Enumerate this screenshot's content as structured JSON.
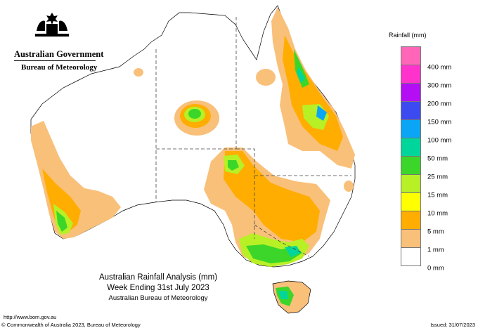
{
  "header": {
    "government": "Australian Government",
    "bureau": "Bureau of Meteorology"
  },
  "legend": {
    "title": "Rainfall (mm)",
    "items": [
      {
        "label": "",
        "color": "#ff66b8"
      },
      {
        "label": "400 mm",
        "color": "#ff33cc"
      },
      {
        "label": "300 mm",
        "color": "#b40ef5"
      },
      {
        "label": "200 mm",
        "color": "#3b4bf0"
      },
      {
        "label": "150 mm",
        "color": "#0ba5f5"
      },
      {
        "label": "100 mm",
        "color": "#00d69b"
      },
      {
        "label": "50 mm",
        "color": "#3bd629"
      },
      {
        "label": "25 mm",
        "color": "#b8f026"
      },
      {
        "label": "15 mm",
        "color": "#ffff00"
      },
      {
        "label": "10 mm",
        "color": "#ffad00"
      },
      {
        "label": "5 mm",
        "color": "#f9c07a"
      },
      {
        "label": "1 mm",
        "color": "#ffffff"
      },
      {
        "label": "0 mm",
        "color": ""
      }
    ]
  },
  "caption": {
    "title": "Australian Rainfall Analysis (mm)",
    "period": "Week Ending 31st July 2023",
    "agency": "Australian Bureau of Meteorology"
  },
  "footer": {
    "url": "http://www.bom.gov.au",
    "copyright": "© Commonwealth of Australia 2023, Bureau of Meteorology",
    "issued": "Issued: 31/07/2023"
  }
}
